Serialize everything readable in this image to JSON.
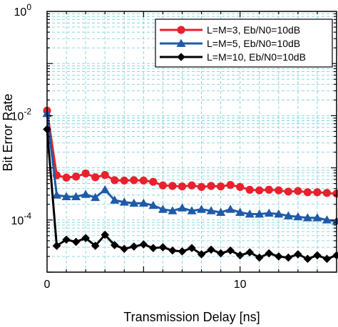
{
  "chart_data": {
    "type": "line",
    "xlabel": "Transmission Delay [ns]",
    "ylabel": "Bit Error Rate",
    "xlim": [
      0,
      15
    ],
    "ylim": [
      1e-05,
      1
    ],
    "yscale": "log",
    "grid": true,
    "legend_position": "top-right",
    "x_ticks": [
      {
        "value": 0,
        "label": "0"
      },
      {
        "value": 10,
        "label": "10"
      }
    ],
    "y_ticks": [
      {
        "value": 1,
        "label": "10^0",
        "base": "10",
        "exp": "0"
      },
      {
        "value": 0.01,
        "label": "10^-2",
        "base": "10",
        "exp": "-2"
      },
      {
        "value": 0.0001,
        "label": "10^-4",
        "base": "10",
        "exp": "-4"
      }
    ],
    "x": [
      0,
      0.5,
      1,
      1.5,
      2,
      2.5,
      3,
      3.5,
      4,
      4.5,
      5,
      5.5,
      6,
      6.5,
      7,
      7.5,
      8,
      8.5,
      9,
      9.5,
      10,
      10.5,
      11,
      11.5,
      12,
      12.5,
      13,
      13.5,
      14,
      14.5,
      15
    ],
    "series": [
      {
        "name": "L=M=3, Eb/N0=10dB",
        "color": "#e8212d",
        "marker": "circle",
        "values": [
          0.0125,
          0.00072,
          0.00065,
          0.00068,
          0.00078,
          0.00066,
          0.00073,
          0.00058,
          0.00057,
          0.00058,
          0.00057,
          0.00054,
          0.00046,
          0.00045,
          0.00044,
          0.00046,
          0.00043,
          0.00045,
          0.00044,
          0.00047,
          0.00043,
          0.00038,
          0.00037,
          0.00038,
          0.00037,
          0.00035,
          0.00036,
          0.00034,
          0.00034,
          0.00033,
          0.00032
        ]
      },
      {
        "name": "L=M=5, Eb/N0=10dB",
        "color": "#1f5aa8",
        "marker": "triangle",
        "values": [
          0.011,
          0.0003,
          0.00028,
          0.00028,
          0.00031,
          0.00027,
          0.00038,
          0.00024,
          0.00022,
          0.00021,
          0.00021,
          0.00019,
          0.00016,
          0.00015,
          0.00017,
          0.00015,
          0.00016,
          0.00015,
          0.00014,
          0.00016,
          0.00014,
          0.00013,
          0.00013,
          0.000135,
          0.00013,
          0.00012,
          0.000115,
          0.00011,
          0.00011,
          0.0001,
          9.5e-05
        ]
      },
      {
        "name": "L=M=10, Eb/N0=10dB",
        "color": "#000000",
        "marker": "diamond",
        "values": [
          0.0055,
          3.2e-05,
          4.2e-05,
          3.8e-05,
          4.5e-05,
          3.2e-05,
          5.2e-05,
          3.3e-05,
          2.8e-05,
          3.1e-05,
          3.4e-05,
          2.9e-05,
          3e-05,
          2.6e-05,
          2.5e-05,
          2.9e-05,
          2.2e-05,
          2.7e-05,
          2.3e-05,
          2.6e-05,
          2.1e-05,
          2.4e-05,
          1.9e-05,
          2.3e-05,
          2e-05,
          1.9e-05,
          2.2e-05,
          1.8e-05,
          2.1e-05,
          1.8e-05,
          2.1e-05
        ]
      }
    ]
  }
}
